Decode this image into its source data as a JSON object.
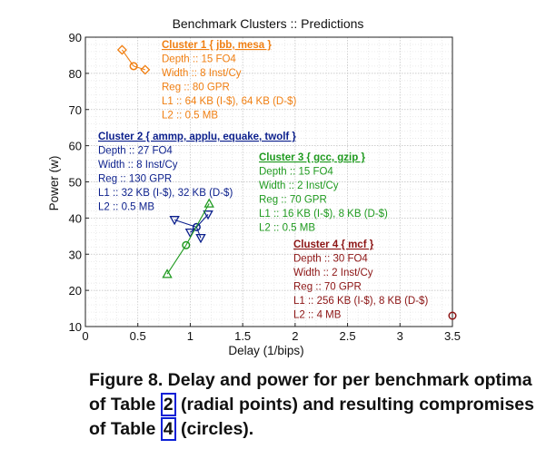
{
  "chart_data": {
    "type": "scatter",
    "title": "Benchmark Clusters :: Predictions",
    "xlabel": "Delay (1/bips)",
    "ylabel": "Power (w)",
    "xlim": [
      0,
      3.5
    ],
    "ylim": [
      10,
      90
    ],
    "xticks": [
      "0",
      "0.5",
      "1",
      "1.5",
      "2",
      "2.5",
      "3",
      "3.5"
    ],
    "yticks": [
      "10",
      "20",
      "30",
      "40",
      "50",
      "60",
      "70",
      "80",
      "90"
    ],
    "grid": true,
    "clusters": [
      {
        "color": "#f07f12",
        "heading": "Cluster 1 { jbb, mesa }",
        "details": [
          "Depth :: 15 FO4",
          "Width :: 8 Inst/Cy",
          "Reg :: 80 GPR",
          "L1 :: 64 KB (I-$), 64 KB (D-$)",
          "L2 :: 0.5 MB"
        ],
        "center": [
          0.46,
          82
        ],
        "points": [
          {
            "x": 0.35,
            "y": 86.5,
            "marker": "diamond"
          },
          {
            "x": 0.57,
            "y": 81,
            "marker": "diamond"
          }
        ],
        "circle": {
          "x": 0.46,
          "y": 82
        }
      },
      {
        "color": "#0b1f8c",
        "heading": "Cluster 2 { ammp, applu, equake, twolf }",
        "details": [
          "Depth :: 27 FO4",
          "Width :: 8 Inst/Cy",
          "Reg :: 130 GPR",
          "L1 :: 32 KB (I-$), 32 KB (D-$)",
          "L2 :: 0.5 MB"
        ],
        "center": [
          1.06,
          37.5
        ],
        "points": [
          {
            "x": 0.85,
            "y": 39.5,
            "marker": "triangle-down"
          },
          {
            "x": 1.0,
            "y": 36,
            "marker": "triangle-down"
          },
          {
            "x": 1.1,
            "y": 34.5,
            "marker": "triangle-down"
          },
          {
            "x": 1.17,
            "y": 41,
            "marker": "triangle-down"
          }
        ],
        "circle": {
          "x": 1.06,
          "y": 37.5
        }
      },
      {
        "color": "#1f9a1f",
        "heading": "Cluster 3 { gcc, gzip }",
        "details": [
          "Depth :: 15 FO4",
          "Width :: 2 Inst/Cy",
          "Reg :: 70 GPR",
          "L1 :: 16 KB (I-$), 8 KB (D-$)",
          "L2 :: 0.5 MB"
        ],
        "center": [
          0.96,
          32.5
        ],
        "points": [
          {
            "x": 0.78,
            "y": 24.5,
            "marker": "triangle-up"
          },
          {
            "x": 1.18,
            "y": 44,
            "marker": "triangle-up"
          }
        ],
        "circle": {
          "x": 0.96,
          "y": 32.5
        }
      },
      {
        "color": "#8c1414",
        "heading": "Cluster 4 { mcf }",
        "details": [
          "Depth :: 30 FO4",
          "Width :: 2 Inst/Cy",
          "Reg :: 70 GPR",
          "L1 :: 256 KB (I-$), 8 KB (D-$)",
          "L2 :: 4 MB"
        ],
        "center": [
          3.5,
          13
        ],
        "points": [],
        "circle": {
          "x": 3.5,
          "y": 13
        }
      }
    ]
  },
  "caption": {
    "part1": "Figure 8. Delay and power for per benchmark optima of Table ",
    "ref1": "2",
    "part2": " (radial points) and resulting compromises of Table ",
    "ref2": "4",
    "part3": " (circles)."
  }
}
